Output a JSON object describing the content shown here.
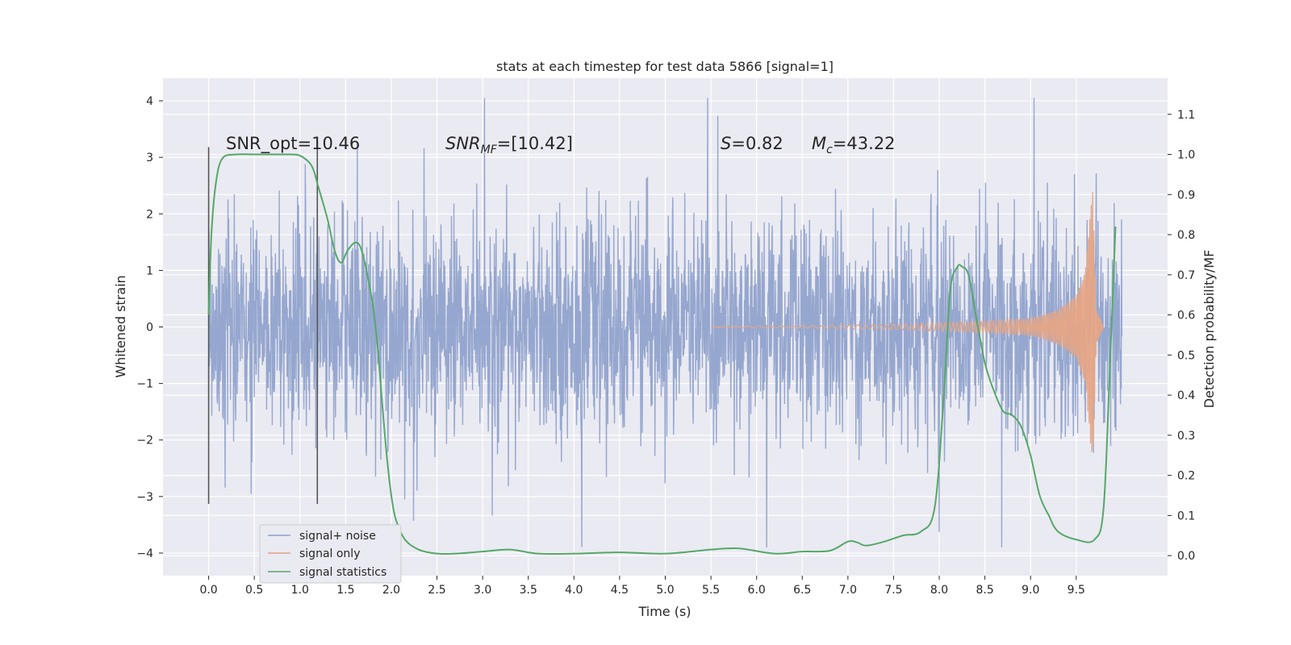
{
  "chart_data": {
    "type": "line",
    "title": "stats at each timestep for test data 5866 [signal=1]",
    "xlabel": "Time (s)",
    "ylabel": "Whitened strain",
    "ylabel_right": "Detection probability/MF",
    "xlim": [
      -0.5,
      10.5
    ],
    "ylim": [
      -4.4,
      4.4
    ],
    "ylim_right": [
      -0.05,
      1.19
    ],
    "x_ticks": [
      "0.0",
      "0.5",
      "1.0",
      "1.5",
      "2.0",
      "2.5",
      "3.0",
      "3.5",
      "4.0",
      "4.5",
      "5.0",
      "5.5",
      "6.0",
      "6.5",
      "7.0",
      "7.5",
      "8.0",
      "8.5",
      "9.0",
      "9.5"
    ],
    "y_ticks": [
      "4",
      "3",
      "2",
      "1",
      "0",
      "−1",
      "−2",
      "−3",
      "−4"
    ],
    "y_tick_values": [
      4,
      3,
      2,
      1,
      0,
      -1,
      -2,
      -3,
      -4
    ],
    "y_right_ticks": [
      "1.1",
      "1.0",
      "0.9",
      "0.8",
      "0.7",
      "0.6",
      "0.5",
      "0.4",
      "0.3",
      "0.2",
      "0.1",
      "0.0"
    ],
    "y_right_tick_values": [
      1.1,
      1.0,
      0.9,
      0.8,
      0.7,
      0.6,
      0.5,
      0.4,
      0.3,
      0.2,
      0.1,
      0.0
    ],
    "grid": true,
    "legend_position": "lower-left",
    "annotations": {
      "snr_opt": "SNR_opt=10.46",
      "snr_mf_italic": "SNR",
      "snr_mf_sub": "MF",
      "snr_mf_rest": "=[10.42]",
      "s_italic": "S",
      "s_rest": "=0.82",
      "mc_italic": "M",
      "mc_sub": "c",
      "mc_rest": "=43.22"
    },
    "window_markers_x": [
      0.0,
      1.19
    ],
    "series": [
      {
        "name": "signal+ noise",
        "color": "#8da0cb",
        "style": "dense noise trace, roughly ±1.3 core with spikes to ±4",
        "x_range": [
          0.0,
          10.0
        ]
      },
      {
        "name": "signal only",
        "color": "#e5a585",
        "style": "chirp with growing amplitude, merger near 9.68 s",
        "envelope": [
          [
            5.5,
            0.01
          ],
          [
            6.5,
            0.02
          ],
          [
            7.5,
            0.05
          ],
          [
            8.5,
            0.1
          ],
          [
            9.0,
            0.15
          ],
          [
            9.3,
            0.3
          ],
          [
            9.5,
            0.55
          ],
          [
            9.6,
            1.0
          ],
          [
            9.68,
            2.5
          ],
          [
            9.72,
            0.3
          ],
          [
            9.8,
            0.0
          ]
        ]
      },
      {
        "name": "signal statistics",
        "color": "#55a868",
        "axis": "right",
        "x": [
          0.0,
          0.03,
          0.08,
          0.15,
          0.3,
          0.5,
          0.7,
          0.9,
          1.0,
          1.1,
          1.15,
          1.2,
          1.3,
          1.38,
          1.45,
          1.52,
          1.6,
          1.66,
          1.72,
          1.8,
          1.85,
          1.9,
          1.95,
          2.0,
          2.05,
          2.15,
          2.3,
          2.5,
          2.7,
          3.0,
          3.3,
          3.6,
          4.0,
          4.5,
          5.0,
          5.5,
          5.8,
          6.2,
          6.5,
          6.8,
          7.0,
          7.1,
          7.2,
          7.4,
          7.6,
          7.8,
          7.95,
          8.05,
          8.12,
          8.2,
          8.25,
          8.32,
          8.4,
          8.5,
          8.6,
          8.7,
          8.8,
          8.9,
          9.0,
          9.1,
          9.2,
          9.3,
          9.5,
          9.7,
          9.8,
          9.87,
          9.93
        ],
        "values": [
          0.6,
          0.8,
          0.93,
          0.99,
          1.0,
          1.0,
          1.0,
          1.0,
          0.997,
          0.98,
          0.96,
          0.92,
          0.84,
          0.76,
          0.73,
          0.76,
          0.78,
          0.77,
          0.72,
          0.62,
          0.52,
          0.38,
          0.25,
          0.15,
          0.09,
          0.04,
          0.015,
          0.005,
          0.005,
          0.01,
          0.015,
          0.005,
          0.005,
          0.008,
          0.005,
          0.015,
          0.018,
          0.005,
          0.01,
          0.012,
          0.035,
          0.033,
          0.025,
          0.035,
          0.05,
          0.06,
          0.12,
          0.4,
          0.66,
          0.72,
          0.72,
          0.7,
          0.6,
          0.48,
          0.41,
          0.36,
          0.35,
          0.32,
          0.25,
          0.15,
          0.1,
          0.06,
          0.04,
          0.04,
          0.12,
          0.48,
          0.82
        ]
      }
    ]
  }
}
